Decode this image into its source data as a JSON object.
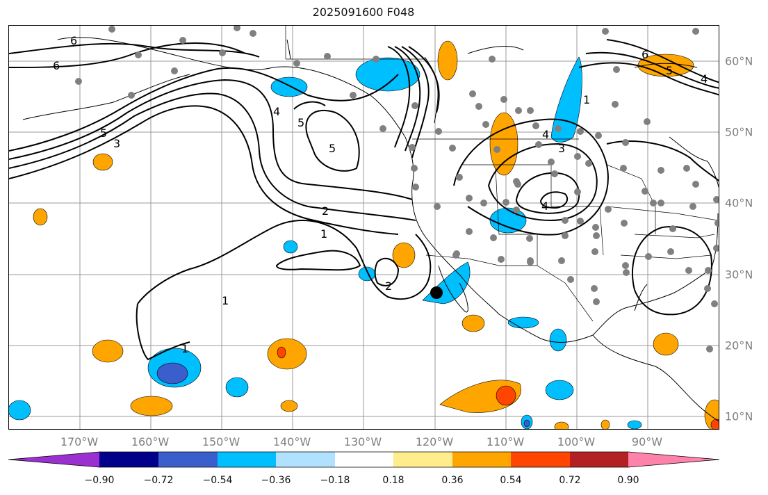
{
  "title": "2025091600 F048",
  "lon_labels": [
    "170°W",
    "160°W",
    "150°W",
    "140°W",
    "130°W",
    "120°W",
    "110°W",
    "100°W",
    "90°W"
  ],
  "lat_labels": [
    "60°N",
    "50°N",
    "40°N",
    "30°N",
    "20°N",
    "10°N"
  ],
  "colorbar": {
    "ticks": [
      "−0.90",
      "−0.72",
      "−0.54",
      "−0.36",
      "−0.18",
      "0.18",
      "0.36",
      "0.54",
      "0.72",
      "0.90"
    ],
    "colors": [
      "#9b30d0",
      "#00008b",
      "#3a5fcd",
      "#00bfff",
      "#b0e2ff",
      "#ffffff",
      "#ffec8b",
      "#ffa500",
      "#ff4500",
      "#b22222",
      "#ff82ab"
    ]
  },
  "contour_labels": [
    "6",
    "6",
    "5",
    "3",
    "4",
    "5",
    "5",
    "2",
    "1",
    "1",
    "2",
    "1",
    "4",
    "3",
    "4",
    "1",
    "6",
    "5",
    "4"
  ],
  "marker": {
    "label": "",
    "lon": -120,
    "lat": 27
  }
}
